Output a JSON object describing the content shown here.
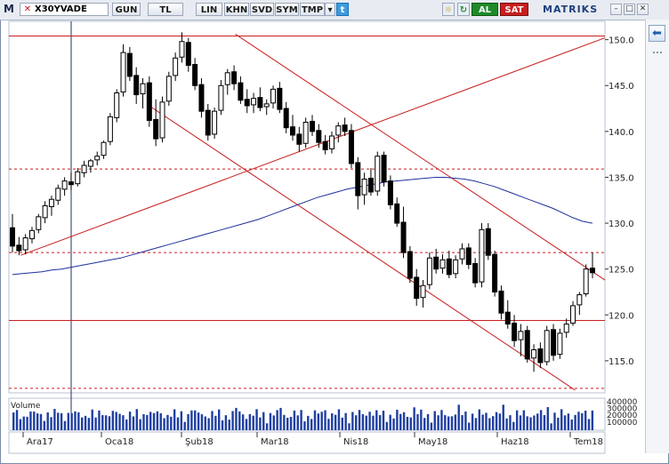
{
  "toolbar": {
    "logo": "M",
    "symbol": "X30YVADE",
    "period": "GUN",
    "currency": "TL",
    "scale": "LIN",
    "buttons": [
      "KHN",
      "SVD",
      "SYM",
      "TMP"
    ],
    "buy_label": "AL",
    "sell_label": "SAT",
    "brand": "MATRIKS"
  },
  "volume_label": "Volume",
  "chart_data": {
    "type": "candlestick",
    "title": "",
    "xlabel": "",
    "ylabel": "",
    "ylim": [
      111.5,
      152
    ],
    "y_ticks": [
      115,
      120,
      125,
      130,
      135,
      140,
      145,
      150
    ],
    "x_tick_labels": [
      "Ara17",
      "Oca18",
      "Şub18",
      "Mar18",
      "Nis18",
      "May18",
      "Haz18",
      "Tem18"
    ],
    "volume_ticks": [
      "400000",
      "300000",
      "200000",
      "100000"
    ],
    "horizontal_lines": [
      {
        "value": 150.4,
        "style": "solid",
        "color": "#c81e1e"
      },
      {
        "value": 135.9,
        "style": "dashed",
        "color": "#c81e1e"
      },
      {
        "value": 126.8,
        "style": "dashed",
        "color": "#c81e1e"
      },
      {
        "value": 119.4,
        "style": "solid",
        "color": "#c81e1e"
      },
      {
        "value": 112.0,
        "style": "dashed",
        "color": "#c81e1e"
      }
    ],
    "moving_average": {
      "color": "#1f2f9a",
      "values": [
        124.4,
        124.5,
        124.6,
        124.7,
        124.9,
        125.0,
        125.2,
        125.4,
        125.6,
        125.8,
        126.0,
        126.2,
        126.5,
        126.8,
        127.1,
        127.4,
        127.7,
        128.0,
        128.3,
        128.6,
        128.9,
        129.2,
        129.5,
        129.8,
        130.1,
        130.4,
        130.8,
        131.2,
        131.6,
        132.0,
        132.4,
        132.8,
        133.1,
        133.4,
        133.7,
        133.9,
        134.1,
        134.3,
        134.5,
        134.6,
        134.7,
        134.8,
        134.9,
        135.0,
        135.0,
        134.9,
        134.8,
        134.6,
        134.3,
        134.0,
        133.6,
        133.2,
        132.8,
        132.4,
        132.0,
        131.6,
        131.1,
        130.6,
        130.2,
        130.0
      ]
    },
    "candles": [
      {
        "o": 129.5,
        "h": 131.0,
        "l": 126.8,
        "c": 127.5
      },
      {
        "o": 127.6,
        "h": 128.5,
        "l": 126.5,
        "c": 127.0
      },
      {
        "o": 127.1,
        "h": 128.8,
        "l": 126.6,
        "c": 128.4
      },
      {
        "o": 128.3,
        "h": 129.6,
        "l": 127.8,
        "c": 129.2
      },
      {
        "o": 129.3,
        "h": 131.0,
        "l": 128.9,
        "c": 130.7
      },
      {
        "o": 130.6,
        "h": 132.4,
        "l": 130.0,
        "c": 131.9
      },
      {
        "o": 131.8,
        "h": 133.0,
        "l": 130.8,
        "c": 132.6
      },
      {
        "o": 132.5,
        "h": 134.2,
        "l": 132.0,
        "c": 133.8
      },
      {
        "o": 133.7,
        "h": 135.0,
        "l": 133.0,
        "c": 134.6
      },
      {
        "o": 134.5,
        "h": 135.5,
        "l": 133.6,
        "c": 134.2
      },
      {
        "o": 134.3,
        "h": 136.0,
        "l": 134.0,
        "c": 135.6
      },
      {
        "o": 135.5,
        "h": 136.8,
        "l": 135.0,
        "c": 136.3
      },
      {
        "o": 136.2,
        "h": 137.0,
        "l": 135.5,
        "c": 136.8
      },
      {
        "o": 136.9,
        "h": 137.8,
        "l": 136.3,
        "c": 137.3
      },
      {
        "o": 137.4,
        "h": 139.0,
        "l": 137.0,
        "c": 138.8
      },
      {
        "o": 138.9,
        "h": 142.0,
        "l": 138.5,
        "c": 141.6
      },
      {
        "o": 141.5,
        "h": 144.6,
        "l": 141.0,
        "c": 144.2
      },
      {
        "o": 144.3,
        "h": 149.5,
        "l": 143.8,
        "c": 148.6
      },
      {
        "o": 148.5,
        "h": 149.2,
        "l": 145.5,
        "c": 146.0
      },
      {
        "o": 146.1,
        "h": 147.0,
        "l": 143.0,
        "c": 144.0
      },
      {
        "o": 144.1,
        "h": 145.8,
        "l": 142.5,
        "c": 145.2
      },
      {
        "o": 145.3,
        "h": 146.0,
        "l": 140.5,
        "c": 141.2
      },
      {
        "o": 141.3,
        "h": 143.5,
        "l": 138.4,
        "c": 139.2
      },
      {
        "o": 139.3,
        "h": 143.8,
        "l": 138.8,
        "c": 143.2
      },
      {
        "o": 143.3,
        "h": 146.5,
        "l": 142.8,
        "c": 146.0
      },
      {
        "o": 146.1,
        "h": 148.6,
        "l": 145.5,
        "c": 148.0
      },
      {
        "o": 148.1,
        "h": 150.8,
        "l": 147.5,
        "c": 149.8
      },
      {
        "o": 149.7,
        "h": 150.2,
        "l": 146.5,
        "c": 147.2
      },
      {
        "o": 147.3,
        "h": 148.0,
        "l": 144.5,
        "c": 145.0
      },
      {
        "o": 145.1,
        "h": 145.8,
        "l": 141.5,
        "c": 142.2
      },
      {
        "o": 142.3,
        "h": 143.0,
        "l": 139.0,
        "c": 139.6
      },
      {
        "o": 139.7,
        "h": 142.6,
        "l": 139.2,
        "c": 142.2
      },
      {
        "o": 142.3,
        "h": 145.6,
        "l": 141.8,
        "c": 145.0
      },
      {
        "o": 145.1,
        "h": 146.8,
        "l": 144.0,
        "c": 146.4
      },
      {
        "o": 146.5,
        "h": 147.2,
        "l": 144.5,
        "c": 145.2
      },
      {
        "o": 145.3,
        "h": 146.0,
        "l": 143.0,
        "c": 143.4
      },
      {
        "o": 143.5,
        "h": 144.6,
        "l": 142.0,
        "c": 142.8
      },
      {
        "o": 142.9,
        "h": 144.2,
        "l": 142.0,
        "c": 143.6
      },
      {
        "o": 143.7,
        "h": 144.8,
        "l": 142.2,
        "c": 142.6
      },
      {
        "o": 142.7,
        "h": 143.5,
        "l": 141.8,
        "c": 143.0
      },
      {
        "o": 143.1,
        "h": 145.0,
        "l": 142.5,
        "c": 144.6
      },
      {
        "o": 144.7,
        "h": 145.4,
        "l": 142.0,
        "c": 142.4
      },
      {
        "o": 142.5,
        "h": 143.2,
        "l": 139.8,
        "c": 140.4
      },
      {
        "o": 140.5,
        "h": 141.8,
        "l": 139.0,
        "c": 139.6
      },
      {
        "o": 139.7,
        "h": 140.5,
        "l": 137.8,
        "c": 138.6
      },
      {
        "o": 138.7,
        "h": 141.5,
        "l": 138.2,
        "c": 141.0
      },
      {
        "o": 141.1,
        "h": 141.8,
        "l": 139.5,
        "c": 140.0
      },
      {
        "o": 140.1,
        "h": 140.8,
        "l": 138.2,
        "c": 138.8
      },
      {
        "o": 138.9,
        "h": 139.6,
        "l": 137.5,
        "c": 138.0
      },
      {
        "o": 138.1,
        "h": 140.0,
        "l": 137.6,
        "c": 139.5
      },
      {
        "o": 139.6,
        "h": 141.0,
        "l": 138.8,
        "c": 140.6
      },
      {
        "o": 140.7,
        "h": 141.5,
        "l": 139.5,
        "c": 140.0
      },
      {
        "o": 140.1,
        "h": 140.8,
        "l": 136.0,
        "c": 136.5
      },
      {
        "o": 136.6,
        "h": 137.2,
        "l": 131.5,
        "c": 133.0
      },
      {
        "o": 133.1,
        "h": 135.5,
        "l": 132.0,
        "c": 134.8
      },
      {
        "o": 134.9,
        "h": 136.0,
        "l": 133.0,
        "c": 133.4
      },
      {
        "o": 133.5,
        "h": 137.8,
        "l": 133.0,
        "c": 137.3
      },
      {
        "o": 137.4,
        "h": 137.8,
        "l": 134.0,
        "c": 134.5
      },
      {
        "o": 134.6,
        "h": 135.2,
        "l": 131.5,
        "c": 132.0
      },
      {
        "o": 132.1,
        "h": 132.8,
        "l": 129.6,
        "c": 130.0
      }
    ],
    "candles_b": [
      {
        "o": 130.1,
        "h": 131.8,
        "l": 126.2,
        "c": 126.8
      },
      {
        "o": 126.9,
        "h": 127.5,
        "l": 123.5,
        "c": 124.0
      },
      {
        "o": 124.1,
        "h": 125.0,
        "l": 121.0,
        "c": 121.8
      },
      {
        "o": 121.9,
        "h": 123.8,
        "l": 120.8,
        "c": 123.2
      },
      {
        "o": 123.3,
        "h": 126.8,
        "l": 122.8,
        "c": 126.2
      },
      {
        "o": 126.3,
        "h": 127.2,
        "l": 124.5,
        "c": 125.0
      },
      {
        "o": 125.1,
        "h": 126.6,
        "l": 124.5,
        "c": 126.0
      },
      {
        "o": 126.1,
        "h": 127.0,
        "l": 124.0,
        "c": 124.4
      },
      {
        "o": 124.5,
        "h": 126.5,
        "l": 124.0,
        "c": 126.0
      },
      {
        "o": 126.1,
        "h": 127.8,
        "l": 125.5,
        "c": 127.2
      },
      {
        "o": 127.3,
        "h": 127.8,
        "l": 125.0,
        "c": 125.5
      },
      {
        "o": 125.6,
        "h": 126.2,
        "l": 123.0,
        "c": 123.5
      },
      {
        "o": 123.6,
        "h": 130.0,
        "l": 123.0,
        "c": 129.3
      },
      {
        "o": 129.4,
        "h": 130.0,
        "l": 126.0,
        "c": 126.5
      },
      {
        "o": 126.6,
        "h": 127.0,
        "l": 122.0,
        "c": 122.5
      },
      {
        "o": 122.6,
        "h": 123.2,
        "l": 119.5,
        "c": 120.2
      },
      {
        "o": 120.3,
        "h": 121.6,
        "l": 118.5,
        "c": 119.0
      },
      {
        "o": 119.1,
        "h": 120.0,
        "l": 116.5,
        "c": 117.2
      },
      {
        "o": 117.3,
        "h": 119.0,
        "l": 115.5,
        "c": 118.2
      },
      {
        "o": 118.3,
        "h": 118.8,
        "l": 114.8,
        "c": 115.2
      },
      {
        "o": 115.3,
        "h": 116.8,
        "l": 113.8,
        "c": 116.2
      },
      {
        "o": 116.3,
        "h": 117.0,
        "l": 114.2,
        "c": 114.8
      },
      {
        "o": 114.9,
        "h": 118.8,
        "l": 114.5,
        "c": 118.3
      },
      {
        "o": 118.4,
        "h": 119.0,
        "l": 115.0,
        "c": 115.6
      },
      {
        "o": 115.7,
        "h": 118.5,
        "l": 115.2,
        "c": 118.0
      },
      {
        "o": 118.1,
        "h": 119.6,
        "l": 117.5,
        "c": 119.0
      },
      {
        "o": 119.1,
        "h": 121.5,
        "l": 118.8,
        "c": 121.0
      },
      {
        "o": 121.1,
        "h": 122.5,
        "l": 120.0,
        "c": 122.2
      },
      {
        "o": 122.3,
        "h": 125.5,
        "l": 122.0,
        "c": 125.0
      },
      {
        "o": 125.1,
        "h": 126.8,
        "l": 124.0,
        "c": 124.6
      }
    ],
    "trend_lines": [
      {
        "from": [
          0.02,
          126.5
        ],
        "to": [
          1.0,
          150.2
        ],
        "color": "#c81e1e"
      },
      {
        "from": [
          0.38,
          150.6
        ],
        "to": [
          1.0,
          123.8
        ],
        "color": "#c81e1e"
      },
      {
        "from": [
          0.24,
          142.6
        ],
        "to": [
          0.95,
          111.8
        ],
        "color": "#c81e1e"
      }
    ]
  }
}
